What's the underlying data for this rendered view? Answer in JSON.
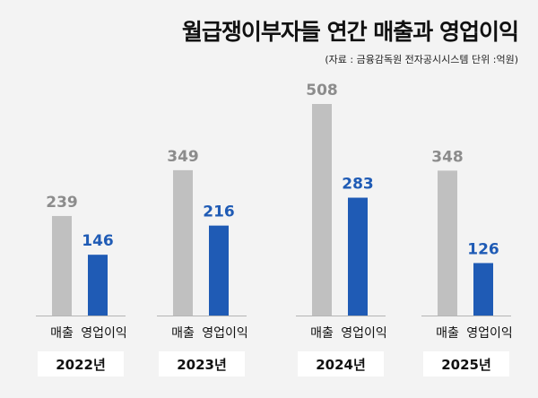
{
  "chart_data": {
    "type": "bar",
    "title": "월급쟁이부자들 연간 매출과 영업이익",
    "subtitle": "(자료 : 금융감독원 전자공시시스템   단위 :억원)",
    "categories": [
      "2022년",
      "2023년",
      "2024년",
      "2025년"
    ],
    "series": [
      {
        "name": "매출",
        "color": "#c0c0c0",
        "values": [
          239,
          349,
          508,
          348
        ]
      },
      {
        "name": "영업이익",
        "color": "#1f5bb5",
        "values": [
          146,
          216,
          283,
          126
        ]
      }
    ],
    "value_label_colors": [
      "#8c8c8c",
      "#1f5bb5"
    ],
    "ylim": [
      0,
      508
    ],
    "xlabel": "",
    "ylabel": ""
  }
}
